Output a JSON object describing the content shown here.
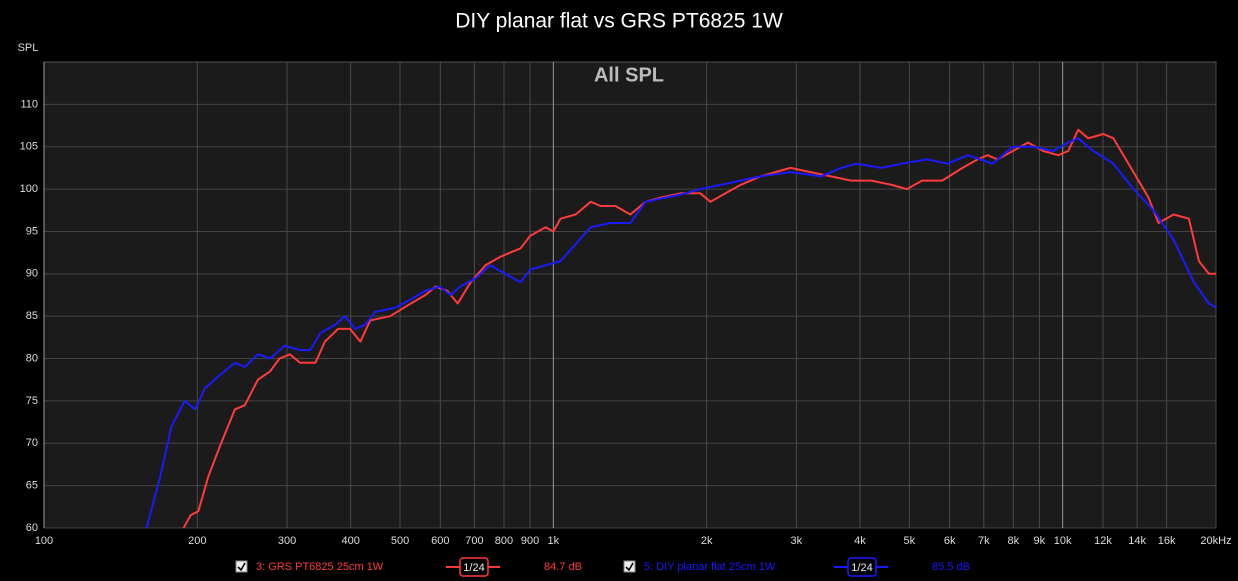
{
  "chart_data": {
    "type": "line",
    "title": "DIY planar flat vs GRS PT6825 1W",
    "subtitle": "All SPL",
    "y_label": "SPL",
    "xscale": "log",
    "xlim": [
      100,
      20000
    ],
    "ylim": [
      60,
      115
    ],
    "xticks": [
      100,
      200,
      300,
      400,
      500,
      600,
      700,
      800,
      900,
      {
        "value": 1000,
        "label": "1k"
      },
      {
        "value": 2000,
        "label": "2k"
      },
      {
        "value": 3000,
        "label": "3k"
      },
      {
        "value": 4000,
        "label": "4k"
      },
      {
        "value": 5000,
        "label": "5k"
      },
      {
        "value": 6000,
        "label": "6k"
      },
      {
        "value": 7000,
        "label": "7k"
      },
      {
        "value": 8000,
        "label": "8k"
      },
      {
        "value": 9000,
        "label": "9k"
      },
      {
        "value": 10000,
        "label": "10k"
      },
      {
        "value": 12000,
        "label": "12k"
      },
      {
        "value": 14000,
        "label": "14k"
      },
      {
        "value": 16000,
        "label": "16k"
      },
      {
        "value": 20000,
        "label": "20kHz"
      }
    ],
    "yticks": [
      60,
      65,
      70,
      75,
      80,
      85,
      90,
      95,
      100,
      105,
      110
    ],
    "grid": true,
    "series": [
      {
        "name": "3: GRS PT6825 25cm 1W",
        "color": "#ff3b3b",
        "smoothing": "1/24",
        "level": "84.7 dB",
        "x": [
          188,
          194,
          201,
          210,
          221,
          237,
          248,
          263,
          278,
          290,
          304,
          318,
          341,
          356,
          378,
          399,
          418,
          437,
          478,
          525,
          561,
          587,
          619,
          649,
          688,
          736,
          786,
          823,
          862,
          901,
          965,
          1000,
          1033,
          1106,
          1184,
          1238,
          1324,
          1417,
          1517,
          1624,
          1779,
          1943,
          2035,
          2178,
          2332,
          2549,
          2922,
          3200,
          3507,
          3843,
          4212,
          4617,
          4944,
          5294,
          5800,
          6358,
          6807,
          7122,
          7452,
          7981,
          8548,
          9153,
          9804,
          10254,
          10727,
          11223,
          12020,
          12575,
          13468,
          14090,
          14741,
          15420,
          16517,
          17691,
          18508,
          19364,
          20000
        ],
        "values": [
          60,
          61.5,
          62,
          66,
          69.5,
          74,
          74.5,
          77.5,
          78.5,
          80,
          80.5,
          79.5,
          79.5,
          82,
          83.5,
          83.5,
          82,
          84.5,
          85,
          86.5,
          87.5,
          88.5,
          88,
          86.5,
          89,
          91,
          92,
          92.5,
          93,
          94.5,
          95.5,
          95,
          96.5,
          97,
          98.5,
          98,
          98,
          97,
          98.5,
          99,
          99.5,
          99.5,
          98.5,
          99.5,
          100.5,
          101.5,
          102.5,
          102,
          101.5,
          101,
          101,
          100.5,
          100,
          101,
          101,
          102.5,
          103.5,
          104,
          103.5,
          104.5,
          105.5,
          104.5,
          104,
          104.5,
          107,
          106,
          106.5,
          106,
          103,
          101,
          99,
          96,
          97,
          96.5,
          91.5,
          90,
          90
        ]
      },
      {
        "name": "5: DIY planar flat 25cm 1W",
        "color": "#1a1aff",
        "smoothing": "1/24",
        "level": "85.5 dB",
        "x": [
          159,
          169,
          178,
          189,
          198,
          207,
          221,
          237,
          248,
          263,
          278,
          297,
          318,
          333,
          349,
          373,
          390,
          408,
          427,
          447,
          489,
          525,
          561,
          598,
          628,
          657,
          704,
          752,
          804,
          862,
          901,
          965,
          1033,
          1106,
          1184,
          1295,
          1417,
          1517,
          1661,
          1819,
          1943,
          2131,
          2332,
          2549,
          2922,
          3355,
          3673,
          3929,
          4403,
          4828,
          5414,
          5940,
          6513,
          7289,
          7981,
          8745,
          9580,
          10254,
          10727,
          11483,
          12575,
          13775,
          15080,
          16517,
          18096,
          19364,
          20000
        ],
        "values": [
          60,
          66,
          72,
          75,
          74,
          76.5,
          78,
          79.5,
          79,
          80.5,
          80,
          81.5,
          81,
          81,
          83,
          84,
          85,
          83.5,
          84,
          85.5,
          86,
          87,
          88,
          88.5,
          87.5,
          88.5,
          89.5,
          91,
          90,
          89,
          90.5,
          91,
          91.5,
          93.5,
          95.5,
          96,
          96,
          98.5,
          99,
          99.5,
          100,
          100.5,
          101,
          101.5,
          102,
          101.5,
          102.5,
          103,
          102.5,
          103,
          103.5,
          103,
          104,
          103,
          105,
          105,
          104.5,
          105.5,
          106,
          104.5,
          103,
          100,
          97.5,
          94,
          89,
          86.5,
          86
        ]
      }
    ]
  }
}
